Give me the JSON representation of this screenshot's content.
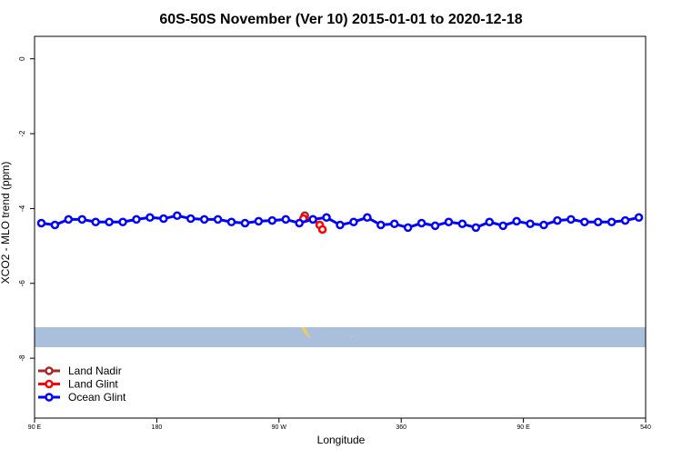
{
  "chart_data": {
    "type": "line",
    "title": "60S-50S November (Ver 10)   2015-01-01 to 2020-12-18",
    "xlabel": "Longitude",
    "ylabel": "XCO2 - MLO trend (ppm)",
    "xlim": [
      90,
      540
    ],
    "ylim": [
      -9.6,
      0.6
    ],
    "xticks": [
      {
        "value": 90,
        "label": "90 E"
      },
      180,
      {
        "value": 270,
        "label": "90 W"
      },
      360,
      {
        "value": 450,
        "label": "90 E"
      },
      540
    ],
    "yticks": [
      0,
      -2,
      -4,
      -6,
      -8
    ],
    "legend": "bottom-left",
    "series": [
      {
        "name": "Land Nadir",
        "color": "#a52a2a",
        "x": [
          289
        ],
        "values": [
          -4.19
        ]
      },
      {
        "name": "Land Glint",
        "color": "#ff0000",
        "x": [
          288,
          295,
          300,
          302
        ],
        "values": [
          -4.27,
          -4.29,
          -4.44,
          -4.56
        ]
      },
      {
        "name": "Ocean Glint",
        "color": "#0000ff",
        "x": [
          95,
          105,
          115,
          125,
          135,
          145,
          155,
          165,
          175,
          185,
          195,
          205,
          215,
          225,
          235,
          245,
          255,
          265,
          275,
          285,
          295,
          305,
          315,
          325,
          335,
          345,
          355,
          365,
          375,
          385,
          395,
          405,
          415,
          425,
          435,
          445,
          455,
          465,
          475,
          485,
          495,
          505,
          515,
          525,
          535
        ],
        "values": [
          -4.39,
          -4.44,
          -4.29,
          -4.29,
          -4.36,
          -4.36,
          -4.36,
          -4.29,
          -4.24,
          -4.27,
          -4.19,
          -4.27,
          -4.29,
          -4.29,
          -4.36,
          -4.39,
          -4.34,
          -4.32,
          -4.29,
          -4.39,
          -4.29,
          -4.24,
          -4.44,
          -4.36,
          -4.24,
          -4.44,
          -4.41,
          -4.51,
          -4.39,
          -4.46,
          -4.36,
          -4.41,
          -4.51,
          -4.36,
          -4.46,
          -4.34,
          -4.41,
          -4.44,
          -4.32,
          -4.29,
          -4.36,
          -4.36,
          -4.36,
          -4.32,
          -4.24
        ]
      }
    ]
  }
}
